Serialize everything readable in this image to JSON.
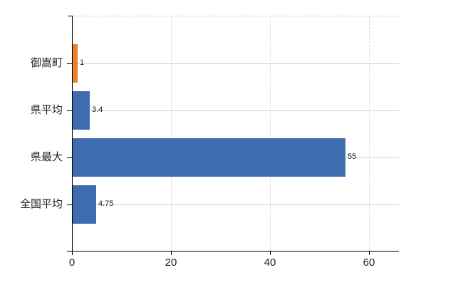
{
  "chart_data": {
    "type": "bar",
    "orientation": "horizontal",
    "categories": [
      "御嵩町",
      "県平均",
      "県最大",
      "全国平均"
    ],
    "values": [
      1,
      3.4,
      55,
      4.75
    ],
    "value_labels": [
      "1",
      "3.4",
      "55",
      "4.75"
    ],
    "bar_colors": [
      "#ec8030",
      "#3e6cb0",
      "#3e6cb0",
      "#3e6cb0"
    ],
    "x_ticks": [
      "0",
      "20",
      "40",
      "60"
    ],
    "x_tick_values": [
      0,
      20,
      40,
      60
    ],
    "xlim": [
      0,
      66
    ],
    "grid": true,
    "legend": "none"
  },
  "colors": {
    "background": "#ffffff",
    "axis": "#000000",
    "text": "#1f1f1f",
    "h_gridline": "#ccd5cc",
    "v_gridline": "#d9d3d8"
  }
}
